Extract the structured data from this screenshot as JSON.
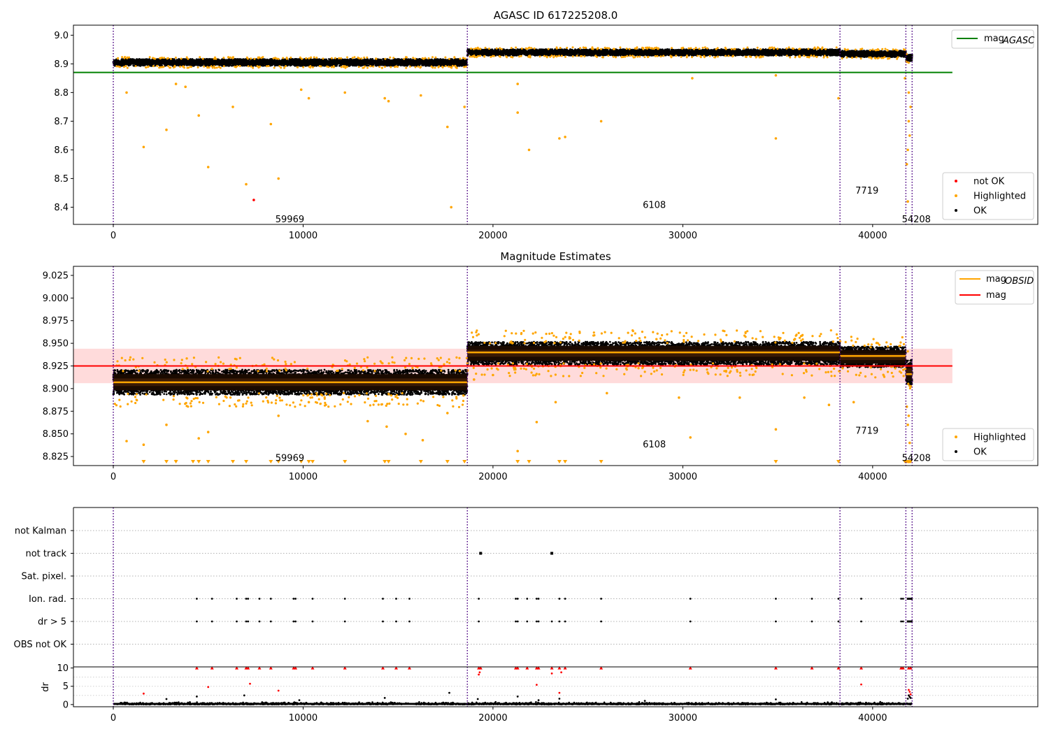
{
  "chart_data": [
    {
      "type": "scatter",
      "title": "AGASC ID 617225208.0",
      "xlim": [
        -2100,
        48700
      ],
      "ylim": [
        8.34,
        9.035
      ],
      "xticks": [
        0,
        10000,
        20000,
        30000,
        40000
      ],
      "yticks": [
        8.4,
        8.5,
        8.6,
        8.7,
        8.8,
        8.9,
        9.0
      ],
      "ytick_labels": [
        "8.4",
        "8.5",
        "8.6",
        "8.7",
        "8.8",
        "8.9",
        "9.0"
      ],
      "obsid_boundaries": [
        0,
        18650,
        38280,
        41750,
        42080
      ],
      "segments": [
        {
          "x_start": 0,
          "x_end": 18650,
          "mean": 8.905,
          "half_width": 0.012
        },
        {
          "x_start": 18650,
          "x_end": 38280,
          "mean": 8.94,
          "half_width": 0.011
        },
        {
          "x_start": 38280,
          "x_end": 41750,
          "mean": 8.935,
          "half_width": 0.011
        },
        {
          "x_start": 41750,
          "x_end": 42080,
          "mean": 8.92,
          "half_width": 0.012
        }
      ],
      "mag_agasc": {
        "y": 8.87,
        "x_start": -2100,
        "x_end": 44200,
        "color": "#008000"
      },
      "highlighted_points": [
        [
          700,
          8.8
        ],
        [
          1600,
          8.61
        ],
        [
          2800,
          8.67
        ],
        [
          3300,
          8.83
        ],
        [
          3800,
          8.82
        ],
        [
          4500,
          8.72
        ],
        [
          5000,
          8.54
        ],
        [
          6300,
          8.75
        ],
        [
          7000,
          8.48
        ],
        [
          8300,
          8.69
        ],
        [
          8700,
          8.5
        ],
        [
          9900,
          8.81
        ],
        [
          10300,
          8.78
        ],
        [
          12200,
          8.8
        ],
        [
          14300,
          8.78
        ],
        [
          14500,
          8.77
        ],
        [
          16200,
          8.79
        ],
        [
          17600,
          8.68
        ],
        [
          17800,
          8.4
        ],
        [
          18500,
          8.75
        ],
        [
          21300,
          8.83
        ],
        [
          21300,
          8.73
        ],
        [
          21900,
          8.6
        ],
        [
          23500,
          8.64
        ],
        [
          23800,
          8.645
        ],
        [
          25700,
          8.7
        ],
        [
          30500,
          8.85
        ],
        [
          34900,
          8.64
        ],
        [
          34900,
          8.86
        ],
        [
          38200,
          8.78
        ],
        [
          41700,
          8.85
        ],
        [
          41900,
          8.8
        ],
        [
          41900,
          8.7
        ],
        [
          41850,
          8.6
        ],
        [
          41800,
          8.55
        ],
        [
          41950,
          8.65
        ],
        [
          42000,
          8.75
        ],
        [
          41850,
          8.42
        ]
      ],
      "not_ok_points": [
        [
          7400,
          8.425
        ]
      ],
      "annotations": [
        {
          "text": "59969",
          "x": 9300,
          "y": 8.36
        },
        {
          "text": "6108",
          "x": 28500,
          "y": 8.41
        },
        {
          "text": "7719",
          "x": 39700,
          "y": 8.46
        },
        {
          "text": "54208",
          "x": 42300,
          "y": 8.36
        }
      ],
      "legend_top": [
        {
          "label_main": "mag",
          "label_sub": "AGASC",
          "color": "#008000"
        }
      ],
      "legend_bottom": [
        {
          "label": "not OK",
          "color": "#ff0000"
        },
        {
          "label": "Highlighted",
          "color": "#ffa500"
        },
        {
          "label": "OK",
          "color": "#000000"
        }
      ]
    },
    {
      "type": "scatter",
      "title": "Magnitude Estimates",
      "xlim": [
        -2100,
        48700
      ],
      "ylim": [
        8.815,
        9.035
      ],
      "xticks": [
        0,
        10000,
        20000,
        30000,
        40000
      ],
      "yticks": [
        8.825,
        8.85,
        8.875,
        8.9,
        8.925,
        8.95,
        8.975,
        9.0,
        9.025
      ],
      "ytick_labels": [
        "8.825",
        "8.850",
        "8.875",
        "8.900",
        "8.925",
        "8.950",
        "8.975",
        "9.000",
        "9.025"
      ],
      "obsid_boundaries": [
        0,
        18650,
        38280,
        41750,
        42080
      ],
      "segments": [
        {
          "x_start": 0,
          "x_end": 18650,
          "mean": 8.907,
          "half_width": 0.012,
          "mag_obsid": 8.907
        },
        {
          "x_start": 18650,
          "x_end": 38280,
          "mean": 8.939,
          "half_width": 0.011,
          "mag_obsid": 8.94
        },
        {
          "x_start": 38280,
          "x_end": 41750,
          "mean": 8.935,
          "half_width": 0.01,
          "mag_obsid": 8.936
        },
        {
          "x_start": 41750,
          "x_end": 42080,
          "mean": 8.918,
          "half_width": 0.012,
          "mag_obsid": 8.916
        }
      ],
      "mag": {
        "y": 8.925,
        "band": [
          8.906,
          8.944
        ],
        "x_start": -2100,
        "x_end": 44200,
        "color": "#ff0000"
      },
      "highlighted_points": [
        [
          700,
          8.842
        ],
        [
          1600,
          8.838
        ],
        [
          2800,
          8.86
        ],
        [
          3300,
          8.82
        ],
        [
          4500,
          8.845
        ],
        [
          5000,
          8.852
        ],
        [
          8700,
          8.87
        ],
        [
          10300,
          8.885
        ],
        [
          13400,
          8.864
        ],
        [
          14400,
          8.858
        ],
        [
          15400,
          8.85
        ],
        [
          16300,
          8.843
        ],
        [
          17600,
          8.873
        ],
        [
          19000,
          8.91
        ],
        [
          20000,
          8.915
        ],
        [
          21300,
          8.831
        ],
        [
          22300,
          8.863
        ],
        [
          23300,
          8.885
        ],
        [
          26000,
          8.895
        ],
        [
          30400,
          8.846
        ],
        [
          29800,
          8.89
        ],
        [
          33000,
          8.89
        ],
        [
          34900,
          8.855
        ],
        [
          36400,
          8.89
        ],
        [
          37700,
          8.882
        ],
        [
          39000,
          8.885
        ],
        [
          41800,
          8.88
        ],
        [
          41850,
          8.86
        ],
        [
          41900,
          8.87
        ],
        [
          41950,
          8.84
        ]
      ],
      "triangle_points": [
        1600,
        2800,
        3300,
        4200,
        4500,
        5000,
        6300,
        7000,
        8300,
        8700,
        9900,
        10300,
        10500,
        12200,
        14300,
        14500,
        16200,
        17600,
        18500,
        21300,
        21900,
        23500,
        23800,
        25700,
        34900,
        38200,
        41700,
        41800,
        41850,
        41900,
        41950,
        42000
      ],
      "annotations": [
        {
          "text": "59969",
          "x": 9300,
          "y": 8.824
        },
        {
          "text": "6108",
          "x": 28500,
          "y": 8.839
        },
        {
          "text": "7719",
          "x": 39700,
          "y": 8.854
        },
        {
          "text": "54208",
          "x": 42300,
          "y": 8.824
        }
      ],
      "legend_top": [
        {
          "label_main": "mag",
          "label_sub": "OBSID",
          "color": "#ffa500"
        },
        {
          "label_main": "mag",
          "label_sub": "",
          "color": "#ff0000"
        }
      ],
      "legend_bottom": [
        {
          "label": "Highlighted",
          "color": "#ffa500"
        },
        {
          "label": "OK",
          "color": "#000000"
        }
      ]
    },
    {
      "type": "scatter",
      "title": "",
      "xlim": [
        -2100,
        48700
      ],
      "categories": [
        "not Kalman",
        "not track",
        "Sat. pixel.",
        "Ion. rad.",
        "dr > 5",
        "OBS not OK"
      ],
      "obsid_boundaries": [
        0,
        18650,
        38280,
        41750,
        42080
      ],
      "flag_points": {
        "not track": [
          19350,
          23100
        ],
        "Ion. rad.": [
          4400,
          5200,
          6500,
          7000,
          7100,
          7700,
          8300,
          9500,
          9600,
          10500,
          12200,
          14200,
          14900,
          15600,
          19250,
          21200,
          21300,
          21800,
          22300,
          22400,
          23500,
          23800,
          25700,
          30400,
          34900,
          36800,
          38200,
          39400,
          41500,
          41600
        ],
        "dr > 5": [
          4400,
          5200,
          6500,
          7000,
          7100,
          7700,
          8300,
          9500,
          9600,
          10500,
          12200,
          14200,
          14900,
          15600,
          19250,
          21200,
          21300,
          21800,
          22300,
          22400,
          23100,
          23500,
          23800,
          25700,
          30400,
          34900,
          36800,
          38200,
          39400,
          41500,
          41600
        ]
      }
    },
    {
      "type": "scatter",
      "title": "",
      "xlim": [
        -2100,
        48700
      ],
      "ylim": [
        -0.6,
        10.3
      ],
      "ylabel": "dr",
      "xticks": [
        0,
        10000,
        20000,
        30000,
        40000
      ],
      "yticks": [
        0,
        5,
        10
      ],
      "ytick_labels": [
        "0",
        "5",
        "10"
      ],
      "obsid_boundaries": [
        0,
        18650,
        38280,
        41750,
        42080
      ],
      "triangles_at_top": [
        4400,
        5200,
        6500,
        7000,
        7100,
        7700,
        8300,
        9500,
        9600,
        10500,
        12200,
        14200,
        14900,
        15600,
        19250,
        19350,
        21200,
        21300,
        21800,
        22300,
        22400,
        23100,
        23500,
        23800,
        25700,
        30400,
        34900,
        36800,
        38200,
        39400,
        41500,
        41600,
        41900,
        42000
      ],
      "red_points": [
        [
          1600,
          3.0
        ],
        [
          5000,
          4.8
        ],
        [
          7200,
          5.7
        ],
        [
          8700,
          3.8
        ],
        [
          19250,
          8.2
        ],
        [
          19300,
          8.8
        ],
        [
          22300,
          5.4
        ],
        [
          23100,
          8.5
        ],
        [
          23500,
          3.2
        ],
        [
          23600,
          8.8
        ],
        [
          39400,
          5.5
        ],
        [
          41900,
          4.0
        ],
        [
          41950,
          3.5
        ],
        [
          42000,
          2.8
        ]
      ],
      "black_points": [
        [
          2800,
          1.5
        ],
        [
          4400,
          2.2
        ],
        [
          6900,
          2.5
        ],
        [
          9800,
          1.2
        ],
        [
          14300,
          1.8
        ],
        [
          17700,
          3.2
        ],
        [
          19200,
          1.5
        ],
        [
          21300,
          2.2
        ],
        [
          22400,
          1.2
        ],
        [
          23500,
          1.6
        ],
        [
          28000,
          1.0
        ],
        [
          34900,
          1.4
        ],
        [
          41900,
          2.5
        ],
        [
          41950,
          2.1
        ],
        [
          42000,
          1.8
        ],
        [
          41850,
          1.6
        ]
      ]
    }
  ]
}
